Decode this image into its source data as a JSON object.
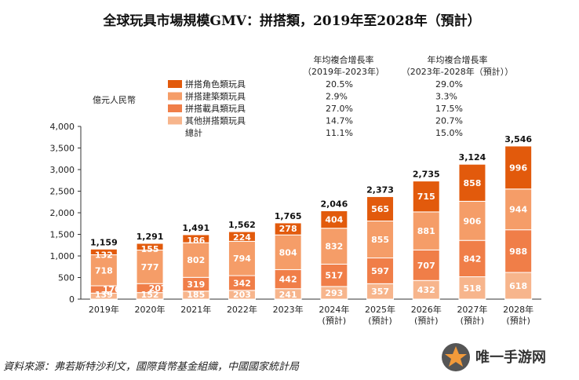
{
  "chart_data": {
    "type": "bar",
    "stacked": true,
    "title": "全球玩具市場規模GMV：拼搭類，2019年至2028年（預計）",
    "ylabel": "億元人民幣",
    "ylim": [
      0,
      4000
    ],
    "yticks": [
      "0",
      "500",
      "1,000",
      "1,500",
      "2,000",
      "2,500",
      "3,000",
      "3,500",
      "4,000"
    ],
    "categories": [
      [
        "2019年"
      ],
      [
        "2020年"
      ],
      [
        "2021年"
      ],
      [
        "2022年"
      ],
      [
        "2023年"
      ],
      [
        "2024年",
        "(預計)"
      ],
      [
        "2025年",
        "(預計)"
      ],
      [
        "2026年",
        "(預計)"
      ],
      [
        "2027年",
        "(預計)"
      ],
      [
        "2028年",
        "(預計)"
      ]
    ],
    "series": [
      {
        "name": "其他拼搭類玩具",
        "color": "#F7B58C",
        "values": [
          139,
          152,
          185,
          203,
          241,
          293,
          357,
          432,
          518,
          618
        ]
      },
      {
        "name": "拼搭載具類玩具",
        "color": "#F07E48",
        "values": [
          170,
          207,
          319,
          342,
          442,
          517,
          597,
          707,
          842,
          988
        ]
      },
      {
        "name": "拼搭建築類玩具",
        "color": "#F59D68",
        "values": [
          718,
          777,
          802,
          794,
          804,
          832,
          855,
          881,
          906,
          944
        ]
      },
      {
        "name": "拼搭角色類玩具",
        "color": "#E25A0C",
        "values": [
          132,
          155,
          186,
          224,
          278,
          404,
          565,
          715,
          858,
          996
        ]
      }
    ],
    "totals": [
      "1,159",
      "1,291",
      "1,491",
      "1,562",
      "1,765",
      "2,046",
      "2,373",
      "2,735",
      "3,124",
      "3,546"
    ],
    "cagr_headers": [
      [
        "年均複合增長率",
        "（2019年-2023年）"
      ],
      [
        "年均複合增長率",
        "（2023年-2028年（預計））"
      ]
    ],
    "legend": [
      {
        "name": "拼搭角色類玩具",
        "color": "#E25A0C",
        "cagr1": "20.5%",
        "cagr2": "29.0%"
      },
      {
        "name": "拼搭建築類玩具",
        "color": "#F59D68",
        "cagr1": "2.9%",
        "cagr2": "3.3%"
      },
      {
        "name": "拼搭載具類玩具",
        "color": "#F07E48",
        "cagr1": "27.0%",
        "cagr2": "17.5%"
      },
      {
        "name": "其他拼搭類玩具",
        "color": "#F7B58C",
        "cagr1": "14.7%",
        "cagr2": "20.7%"
      },
      {
        "name": "總計",
        "color": null,
        "cagr1": "11.1%",
        "cagr2": "15.0%"
      }
    ],
    "grid": false,
    "legend_position": "top-center"
  },
  "source": "資料來源：弗若斯特沙利文，國際貨幣基金組織，中國國家統計局",
  "watermark": {
    "text": "唯一手游网",
    "icon": "star-logo-icon"
  }
}
